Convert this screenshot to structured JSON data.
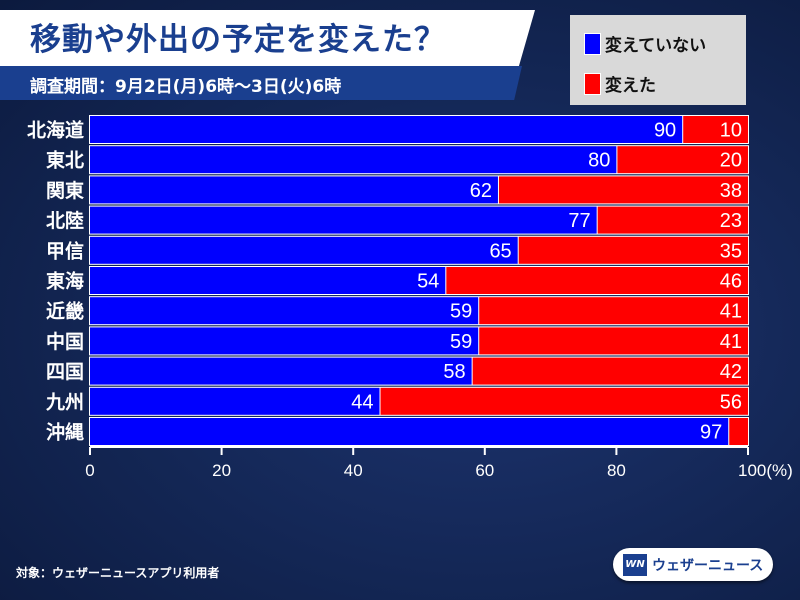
{
  "title": "移動や外出の予定を変えた？",
  "subtitle": "調査期間：9月2日(月)6時～3日(火)6時",
  "footer": "対象：ウェザーニュースアプリ利用者",
  "logo": {
    "mark": "WN",
    "text": "ウェザーニュース"
  },
  "chart_data": {
    "type": "bar",
    "stacked": true,
    "orientation": "horizontal",
    "categories": [
      "北海道",
      "東北",
      "関東",
      "北陸",
      "甲信",
      "東海",
      "近畿",
      "中国",
      "四国",
      "九州",
      "沖縄"
    ],
    "series": [
      {
        "name": "変えていない",
        "color": "#0000ff",
        "values": [
          90,
          80,
          62,
          77,
          65,
          54,
          59,
          59,
          58,
          44,
          97
        ]
      },
      {
        "name": "変えた",
        "color": "#ff0000",
        "values": [
          10,
          20,
          38,
          23,
          35,
          46,
          41,
          41,
          42,
          56,
          3
        ]
      }
    ],
    "hidden_labels": {
      "変えた": [
        10
      ]
    },
    "xlim": [
      0,
      100
    ],
    "xticks": [
      "0",
      "20",
      "40",
      "60",
      "80",
      "100(%)"
    ],
    "legend": "top-right"
  }
}
